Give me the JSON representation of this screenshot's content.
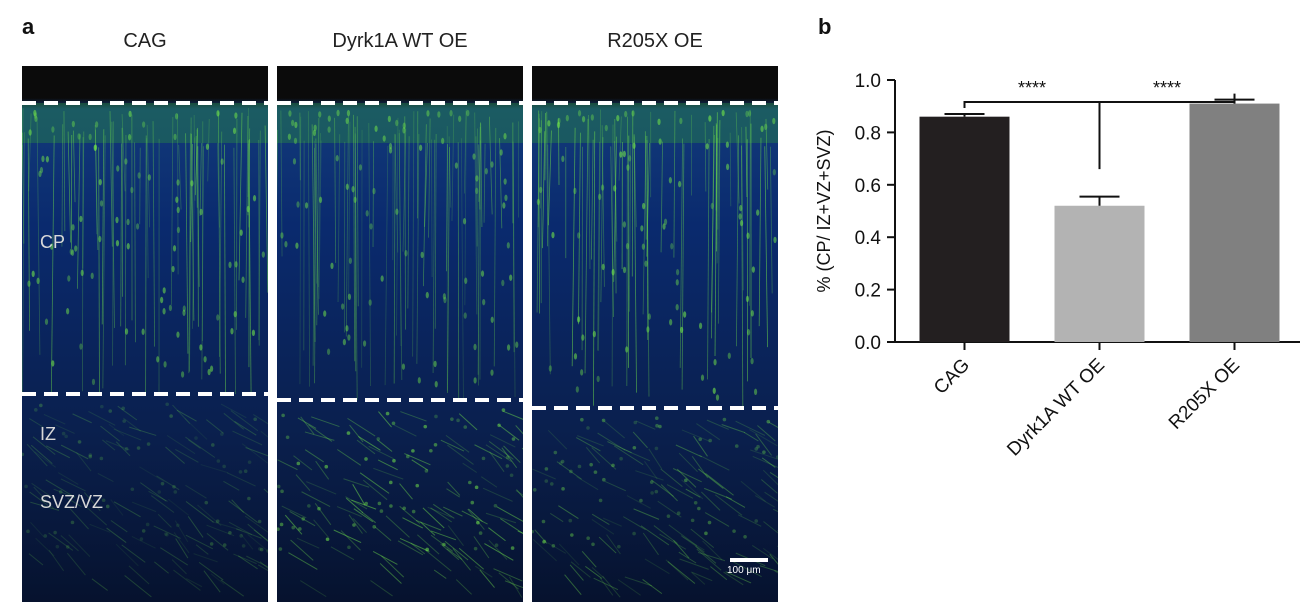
{
  "panel_a": {
    "letter": "a",
    "columns": [
      {
        "title": "CAG"
      },
      {
        "title": "Dyrk1A WT OE"
      },
      {
        "title": "R205X OE"
      }
    ],
    "region_labels": {
      "cp": "CP",
      "iz": "IZ",
      "svz": "SVZ/VZ"
    },
    "scale_bar": "100 μm",
    "colors": {
      "nuclei": "#0a2a6e",
      "neurons": "#6fe04a",
      "background": "#06122e"
    }
  },
  "panel_b": {
    "letter": "b"
  },
  "chart_data": {
    "type": "bar",
    "categories": [
      "CAG",
      "Dyrk1A WT OE",
      "R205X OE"
    ],
    "values": [
      0.86,
      0.52,
      0.91
    ],
    "errors": [
      0.01,
      0.035,
      0.015
    ],
    "bar_colors": [
      "#231f20",
      "#b3b3b3",
      "#808080"
    ],
    "title": "",
    "xlabel": "",
    "ylabel": "% (CP/ IZ+VZ+SVZ)",
    "ylim": [
      0,
      1.0
    ],
    "yticks": [
      "0.0",
      "0.2",
      "0.4",
      "0.6",
      "0.8",
      "1.0"
    ],
    "significance": [
      {
        "from": "CAG",
        "to": "Dyrk1A WT OE",
        "label": "****"
      },
      {
        "from": "Dyrk1A WT OE",
        "to": "R205X OE",
        "label": "****"
      }
    ],
    "grid": false
  }
}
